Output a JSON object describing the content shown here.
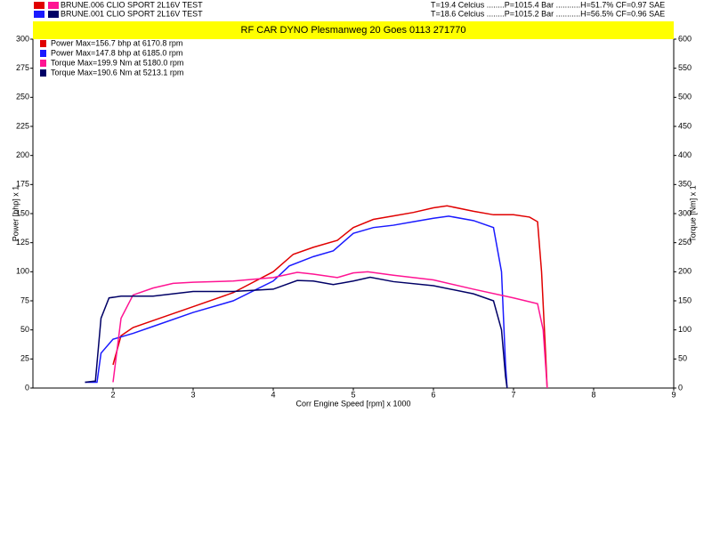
{
  "chart_data": {
    "type": "line",
    "runs": [
      {
        "label": "BRUNE.006 CLIO SPORT   2L16V TEST",
        "conditions": "T=19.4 Celcius ........P=1015.4 Bar ...........H=51.7% CF=0.97 SAE",
        "colors": [
          "#e00000",
          "#ff1493"
        ]
      },
      {
        "label": "BRUNE.001 CLIO SPORT   2L16V TEST",
        "conditions": "T=18.6 Celcius ........P=1015.2 Bar ...........H=56.5% CF=0.96 SAE",
        "colors": [
          "#1a1aff",
          "#000066"
        ]
      }
    ],
    "title": "RF CAR DYNO  Plesmanweg 20 Goes  0113 271770",
    "x_label": "Corr Engine Speed [rpm] x 1000",
    "y_label": "Power [bhp] x 1",
    "y2_label": "Torque [Nm] x 1",
    "xlim": [
      1,
      9
    ],
    "xticks": [
      2,
      3,
      4,
      5,
      6,
      7,
      8,
      9
    ],
    "ylim": [
      0,
      300
    ],
    "yticks": [
      0,
      25,
      50,
      75,
      100,
      125,
      150,
      175,
      200,
      225,
      250,
      275,
      300
    ],
    "y2lim": [
      0,
      600
    ],
    "y2ticks": [
      0,
      50,
      100,
      150,
      200,
      250,
      300,
      350,
      400,
      450,
      500,
      550,
      600
    ],
    "grid": false,
    "legend": "upper-left",
    "series": [
      {
        "name": "Power  Max=156.7 bhp at 6170.8 rpm",
        "color": "#e00000",
        "axis": "y",
        "x": [
          2.0,
          2.1,
          2.25,
          2.5,
          3.0,
          3.5,
          4.0,
          4.25,
          4.5,
          4.8,
          5.0,
          5.25,
          5.5,
          5.75,
          6.0,
          6.17,
          6.5,
          6.75,
          7.0,
          7.2,
          7.3,
          7.35,
          7.4,
          7.42
        ],
        "values": [
          20,
          45,
          52,
          58,
          70,
          82,
          100,
          115,
          121,
          127,
          138,
          145,
          148,
          151,
          155,
          156.7,
          152,
          149,
          149,
          147,
          143,
          100,
          30,
          0
        ]
      },
      {
        "name": "Power  Max=147.8 bhp at 6185.0 rpm",
        "color": "#1a1aff",
        "axis": "y",
        "x": [
          1.65,
          1.8,
          1.85,
          2.0,
          2.25,
          2.5,
          3.0,
          3.5,
          4.0,
          4.2,
          4.5,
          4.75,
          5.0,
          5.25,
          5.5,
          5.75,
          6.0,
          6.19,
          6.5,
          6.75,
          6.85,
          6.9,
          6.92
        ],
        "values": [
          5,
          5,
          30,
          42,
          47,
          53,
          65,
          75,
          92,
          105,
          113,
          118,
          133,
          138,
          140,
          143,
          146,
          147.8,
          144,
          138,
          100,
          20,
          0
        ]
      },
      {
        "name": "Torque  Max=199.9 Nm at 5180.0 rpm",
        "color": "#ff1493",
        "axis": "y2",
        "x": [
          2.0,
          2.1,
          2.25,
          2.5,
          2.75,
          3.0,
          3.5,
          4.0,
          4.3,
          4.5,
          4.8,
          5.0,
          5.18,
          5.5,
          6.0,
          6.5,
          7.0,
          7.3,
          7.37,
          7.42
        ],
        "values": [
          10,
          120,
          160,
          172,
          180,
          182,
          184,
          190,
          199,
          196,
          190,
          198,
          199.9,
          194,
          186,
          170,
          155,
          145,
          100,
          0
        ]
      },
      {
        "name": "Torque  Max=190.6 Nm at 5213.1 rpm",
        "color": "#000066",
        "axis": "y2",
        "x": [
          1.65,
          1.78,
          1.85,
          1.95,
          2.1,
          2.5,
          3.0,
          3.5,
          4.0,
          4.3,
          4.5,
          4.75,
          5.0,
          5.21,
          5.5,
          6.0,
          6.5,
          6.75,
          6.85,
          6.9,
          6.92
        ],
        "values": [
          10,
          12,
          120,
          155,
          158,
          158,
          166,
          166,
          170,
          185,
          184,
          178,
          184,
          190.6,
          183,
          176,
          162,
          150,
          100,
          20,
          0
        ]
      }
    ]
  }
}
